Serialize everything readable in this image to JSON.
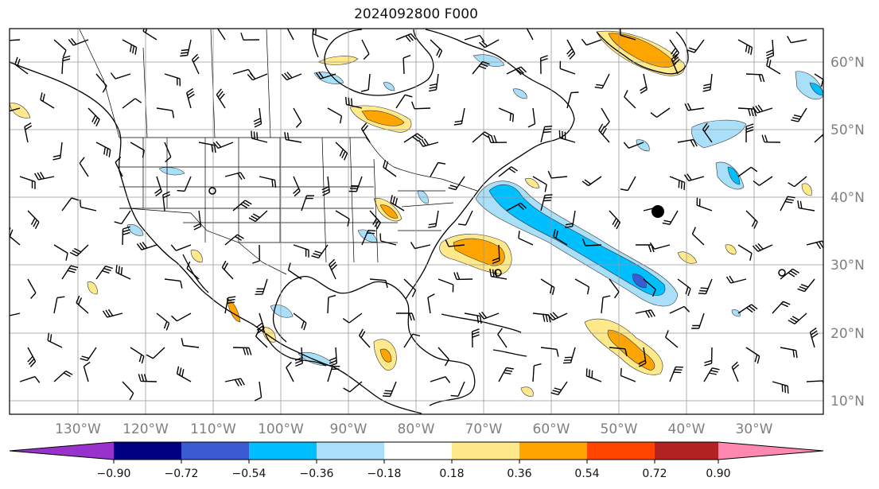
{
  "title": "2024092800 F000",
  "lon_labels": [
    "130°W",
    "120°W",
    "110°W",
    "100°W",
    "90°W",
    "80°W",
    "70°W",
    "60°W",
    "50°W",
    "40°W",
    "30°W"
  ],
  "lat_labels": [
    "60°N",
    "50°N",
    "40°N",
    "30°N",
    "20°N",
    "10°N"
  ],
  "colorbar": {
    "colors": [
      "#9932cc",
      "#000080",
      "#3a5bd1",
      "#00bfff",
      "#aadff9",
      "#ffffff",
      "#ffe98a",
      "#ffa500",
      "#ff4500",
      "#b22222",
      "#ff88b0"
    ],
    "tick_labels": [
      "−0.90",
      "−0.72",
      "−0.54",
      "−0.36",
      "−0.18",
      "0.18",
      "0.36",
      "0.54",
      "0.72",
      "0.90"
    ]
  },
  "colors": {
    "warm_light": "#ffe98a",
    "warm": "#ffa500",
    "cool_light": "#aadff9",
    "cool": "#00bfff",
    "cool_dark": "#3a5bd1"
  }
}
